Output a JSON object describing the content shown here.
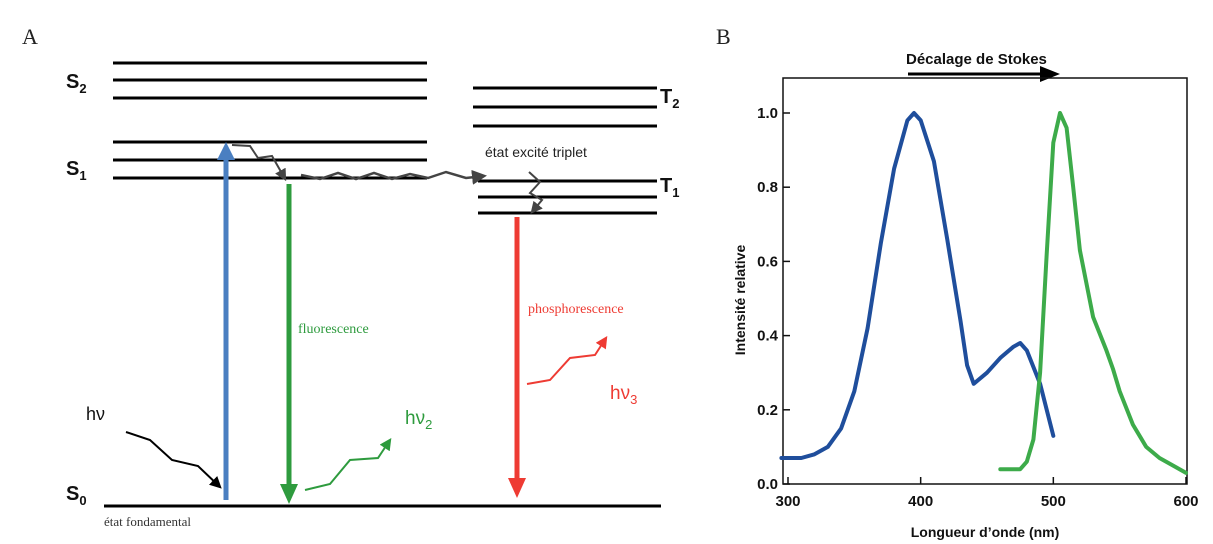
{
  "panel_a": {
    "label": "A",
    "states": {
      "s2": {
        "letter": "S",
        "sub": "2"
      },
      "s1": {
        "letter": "S",
        "sub": "1"
      },
      "s0": {
        "letter": "S",
        "sub": "0"
      },
      "t2": {
        "letter": "T",
        "sub": "2"
      },
      "t1": {
        "letter": "T",
        "sub": "1"
      }
    },
    "texts": {
      "ground_state": "état fondamental",
      "triplet_state": "état excité triplet",
      "fluorescence": "fluorescence",
      "phosphorescence": "phosphorescence",
      "hv": "hν",
      "hv2": {
        "base": "hν",
        "sub": "2"
      },
      "hv3": {
        "base": "hν",
        "sub": "3"
      }
    },
    "colors": {
      "absorption": "#4a7fc1",
      "fluorescence": "#2e9b3e",
      "phosphorescence": "#ee3b33",
      "levels": "#000000",
      "crossing": "#444444"
    }
  },
  "panel_b": {
    "label": "B",
    "stokes_label": "Décalage de Stokes",
    "chart_data": {
      "type": "line",
      "xlabel": "Longueur d’onde (nm)",
      "ylabel": "Intensité relative",
      "xlim": [
        300,
        600
      ],
      "ylim": [
        0,
        1.05
      ],
      "xticks": [
        300,
        400,
        500,
        600
      ],
      "yticks": [
        0.0,
        0.2,
        0.4,
        0.6,
        0.8,
        1.0
      ],
      "ytick_labels": [
        "0.0",
        "0.2",
        "0.4",
        "0.6",
        "0.8",
        "1.0"
      ],
      "grid": false,
      "series": [
        {
          "color": "#1f4e9c",
          "x": [
            295,
            310,
            320,
            330,
            340,
            350,
            360,
            370,
            380,
            390,
            395,
            400,
            410,
            420,
            430,
            435,
            440,
            450,
            460,
            470,
            475,
            480,
            490,
            500
          ],
          "y": [
            0.07,
            0.07,
            0.08,
            0.1,
            0.15,
            0.25,
            0.42,
            0.65,
            0.85,
            0.98,
            1.0,
            0.98,
            0.87,
            0.66,
            0.44,
            0.32,
            0.27,
            0.3,
            0.34,
            0.37,
            0.38,
            0.36,
            0.27,
            0.13
          ]
        },
        {
          "color": "#3dab4a",
          "x": [
            460,
            475,
            480,
            485,
            490,
            495,
            500,
            505,
            510,
            515,
            520,
            530,
            540,
            545,
            550,
            560,
            570,
            580,
            590,
            600
          ],
          "y": [
            0.04,
            0.04,
            0.06,
            0.12,
            0.3,
            0.62,
            0.92,
            1.0,
            0.96,
            0.8,
            0.63,
            0.45,
            0.36,
            0.31,
            0.25,
            0.16,
            0.1,
            0.07,
            0.05,
            0.03
          ]
        }
      ]
    }
  }
}
